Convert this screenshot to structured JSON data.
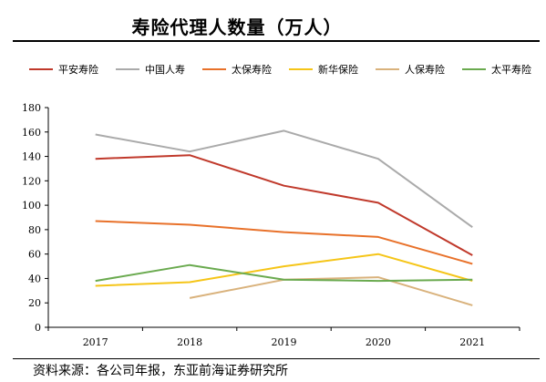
{
  "title": "寿险代理人数量（万人）",
  "source": "资料来源：各公司年报，东亚前海证券研究所",
  "chart_data": {
    "type": "line",
    "title": "寿险代理人数量（万人）",
    "xlabel": "",
    "ylabel": "",
    "x": [
      "2017",
      "2018",
      "2019",
      "2020",
      "2021"
    ],
    "ylim": [
      0,
      180
    ],
    "yticks": [
      0,
      20,
      40,
      60,
      80,
      100,
      120,
      140,
      160,
      180
    ],
    "grid": false,
    "legend_position": "top",
    "series": [
      {
        "name": "平安寿险",
        "color": "#c0392b",
        "values": [
          138,
          141,
          116,
          102,
          59
        ]
      },
      {
        "name": "中国人寿",
        "color": "#aaaaaa",
        "values": [
          158,
          144,
          161,
          138,
          82
        ]
      },
      {
        "name": "太保寿险",
        "color": "#e8712a",
        "values": [
          87,
          84,
          78,
          74,
          52
        ]
      },
      {
        "name": "新华保险",
        "color": "#f5c518",
        "values": [
          34,
          37,
          50,
          60,
          38
        ]
      },
      {
        "name": "人保寿险",
        "color": "#d9b27c",
        "values": [
          null,
          24,
          39,
          41,
          18
        ]
      },
      {
        "name": "太平寿险",
        "color": "#6aaa4f",
        "values": [
          38,
          51,
          39,
          38,
          39
        ]
      }
    ]
  }
}
